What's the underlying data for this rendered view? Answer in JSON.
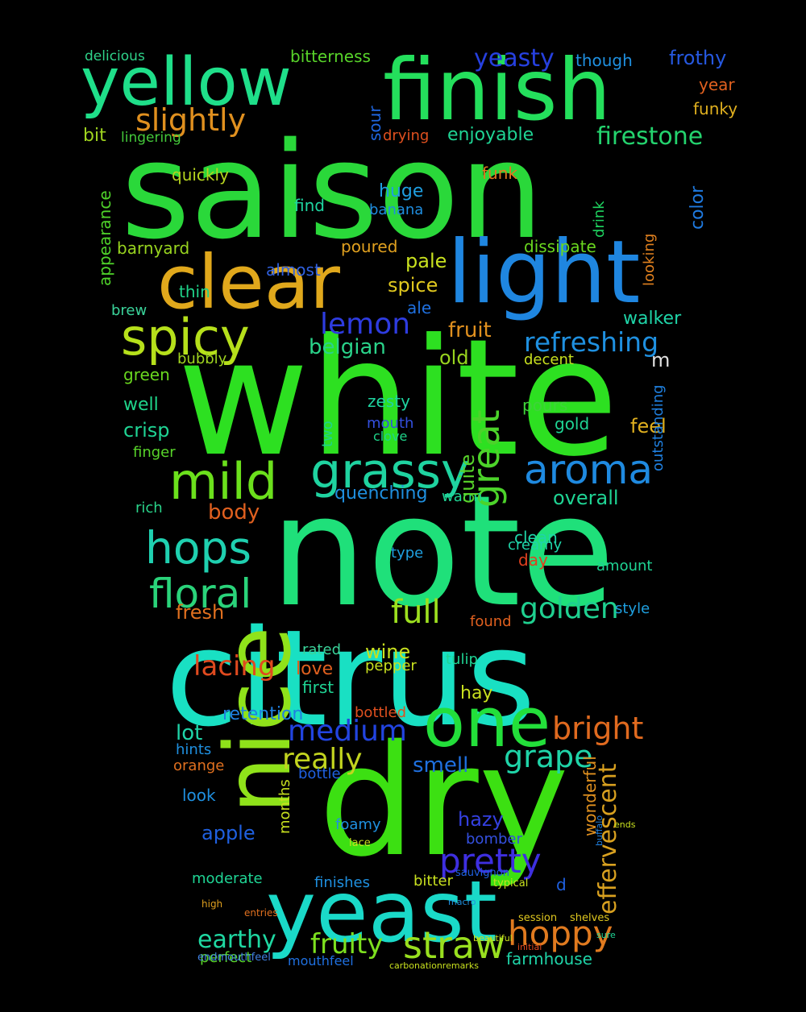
{
  "background": "#000000",
  "words": [
    {
      "text": "white",
      "color": "#2de021"
    },
    {
      "text": "note",
      "color": "#1fe07a"
    },
    {
      "text": "saison",
      "color": "#2ad83a"
    },
    {
      "text": "citrus",
      "color": "#19e0c3"
    },
    {
      "text": "dry",
      "color": "#3ce012"
    },
    {
      "text": "nice",
      "color": "#8fe21a"
    },
    {
      "text": "finish",
      "color": "#24df5c"
    },
    {
      "text": "yellow",
      "color": "#1fdf8a"
    },
    {
      "text": "light",
      "color": "#1f86e0"
    },
    {
      "text": "clear",
      "color": "#e0a81c"
    },
    {
      "text": "yeast",
      "color": "#1ad9c8"
    },
    {
      "text": "one",
      "color": "#23df3a"
    },
    {
      "text": "spicy",
      "color": "#b6e01b"
    },
    {
      "text": "mild",
      "color": "#6be01c"
    },
    {
      "text": "grassy",
      "color": "#1fd3a0"
    },
    {
      "text": "aroma",
      "color": "#1f8ae0"
    },
    {
      "text": "hops",
      "color": "#1fd0b0"
    },
    {
      "text": "floral",
      "color": "#2ad37a"
    },
    {
      "text": "straw",
      "color": "#98df1f"
    },
    {
      "text": "hoppy",
      "color": "#e07a1f"
    },
    {
      "text": "medium",
      "color": "#2244e0"
    },
    {
      "text": "slightly",
      "color": "#e0901f"
    },
    {
      "text": "refreshing",
      "color": "#1f90e0"
    },
    {
      "text": "lemon",
      "color": "#2e3ce0"
    },
    {
      "text": "great",
      "color": "#4cd32a"
    },
    {
      "text": "pretty",
      "color": "#3e2fe0"
    },
    {
      "text": "firestone",
      "color": "#24d36e"
    },
    {
      "text": "grape",
      "color": "#1fd4a8"
    },
    {
      "text": "golden",
      "color": "#1fd090"
    },
    {
      "text": "lacing",
      "color": "#e04a1f"
    },
    {
      "text": "full",
      "color": "#9de01f"
    },
    {
      "text": "fruity",
      "color": "#7de01f"
    },
    {
      "text": "bright",
      "color": "#e06a1f"
    },
    {
      "text": "really",
      "color": "#c2d41f"
    },
    {
      "text": "earthy",
      "color": "#1fd8a2"
    },
    {
      "text": "effervescent",
      "color": "#d8a01f"
    },
    {
      "text": "yeasty",
      "color": "#2640e0"
    },
    {
      "text": "frothy",
      "color": "#2658e0"
    },
    {
      "text": "bitterness",
      "color": "#58d42a"
    },
    {
      "text": "delicious",
      "color": "#2fd38a"
    },
    {
      "text": "though",
      "color": "#1f90e0"
    },
    {
      "text": "year",
      "color": "#e0601f"
    },
    {
      "text": "funky",
      "color": "#e0b01f"
    },
    {
      "text": "bit",
      "color": "#9fd41f"
    },
    {
      "text": "lingering",
      "color": "#44c93a"
    },
    {
      "text": "enjoyable",
      "color": "#1fd494"
    },
    {
      "text": "drying",
      "color": "#e0501f"
    },
    {
      "text": "sour",
      "color": "#1f66e0"
    },
    {
      "text": "quickly",
      "color": "#b6d41f"
    },
    {
      "text": "appearance",
      "color": "#4fd32a"
    },
    {
      "text": "color",
      "color": "#1f7ae0"
    },
    {
      "text": "huge",
      "color": "#1f9ee0"
    },
    {
      "text": "find",
      "color": "#1fd4a0"
    },
    {
      "text": "banana",
      "color": "#1f8ee0"
    },
    {
      "text": "funk",
      "color": "#e0781f"
    },
    {
      "text": "drink",
      "color": "#1fd460"
    },
    {
      "text": "looking",
      "color": "#e0801f"
    },
    {
      "text": "barnyard",
      "color": "#98d41f"
    },
    {
      "text": "almost",
      "color": "#2f60e0"
    },
    {
      "text": "poured",
      "color": "#e0a01f"
    },
    {
      "text": "dissipate",
      "color": "#6ad81f"
    },
    {
      "text": "pale",
      "color": "#c8e01f"
    },
    {
      "text": "spice",
      "color": "#e0c81f"
    },
    {
      "text": "thin",
      "color": "#1fd48a"
    },
    {
      "text": "ale",
      "color": "#1f70e0"
    },
    {
      "text": "walker",
      "color": "#1fd4a8"
    },
    {
      "text": "fruit",
      "color": "#e0901f"
    },
    {
      "text": "belgian",
      "color": "#2ad38a"
    },
    {
      "text": "brew",
      "color": "#3ad39a"
    },
    {
      "text": "old",
      "color": "#98d41f"
    },
    {
      "text": "decent",
      "color": "#c8e01f"
    },
    {
      "text": "m",
      "color": "#e0e0e0"
    },
    {
      "text": "bubbly",
      "color": "#9fd41f"
    },
    {
      "text": "green",
      "color": "#6ad81f"
    },
    {
      "text": "well",
      "color": "#1fd48a"
    },
    {
      "text": "crisp",
      "color": "#1fd494"
    },
    {
      "text": "zesty",
      "color": "#1fd4a0"
    },
    {
      "text": "pours",
      "color": "#3fd33a"
    },
    {
      "text": "gold",
      "color": "#1fd494"
    },
    {
      "text": "feel",
      "color": "#e0b01f"
    },
    {
      "text": "mouth",
      "color": "#3450e0"
    },
    {
      "text": "clove",
      "color": "#1fd48a"
    },
    {
      "text": "finger",
      "color": "#58d42a"
    },
    {
      "text": "two",
      "color": "#1fd48a"
    },
    {
      "text": "quenching",
      "color": "#1f90e0"
    },
    {
      "text": "warm",
      "color": "#1fd494"
    },
    {
      "text": "overall",
      "color": "#1fd494"
    },
    {
      "text": "rich",
      "color": "#2ad38a"
    },
    {
      "text": "body",
      "color": "#e0601f"
    },
    {
      "text": "clean",
      "color": "#1fd4a8"
    },
    {
      "text": "creamy",
      "color": "#1fd4a8"
    },
    {
      "text": "day",
      "color": "#e0401f"
    },
    {
      "text": "type",
      "color": "#1fa0e0"
    },
    {
      "text": "quite",
      "color": "#58d42a"
    },
    {
      "text": "amount",
      "color": "#1fd494"
    },
    {
      "text": "outstanding",
      "color": "#1f80e0"
    },
    {
      "text": "fresh",
      "color": "#e0701f"
    },
    {
      "text": "style",
      "color": "#1fa0e0"
    },
    {
      "text": "found",
      "color": "#e0601f"
    },
    {
      "text": "wine",
      "color": "#c8e01f"
    },
    {
      "text": "pepper",
      "color": "#c8e01f"
    },
    {
      "text": "love",
      "color": "#e0601f"
    },
    {
      "text": "rated",
      "color": "#3ad39a"
    },
    {
      "text": "tulip",
      "color": "#1fd494"
    },
    {
      "text": "first",
      "color": "#1fd494"
    },
    {
      "text": "hay",
      "color": "#c8e01f"
    },
    {
      "text": "retention",
      "color": "#1f80e0"
    },
    {
      "text": "bottled",
      "color": "#e0501f"
    },
    {
      "text": "lot",
      "color": "#1fd4a8"
    },
    {
      "text": "hints",
      "color": "#1f90e0"
    },
    {
      "text": "orange",
      "color": "#e0701f"
    },
    {
      "text": "smell",
      "color": "#1f70e0"
    },
    {
      "text": "bottle",
      "color": "#1f60e0"
    },
    {
      "text": "look",
      "color": "#1f90e0"
    },
    {
      "text": "apple",
      "color": "#1f60e0"
    },
    {
      "text": "hazy",
      "color": "#3440e0"
    },
    {
      "text": "bomber",
      "color": "#3450e0"
    },
    {
      "text": "foamy",
      "color": "#1f90e0"
    },
    {
      "text": "months",
      "color": "#c8e01f"
    },
    {
      "text": "moderate",
      "color": "#1fd494"
    },
    {
      "text": "finishes",
      "color": "#1f90e0"
    },
    {
      "text": "bitter",
      "color": "#c8e01f"
    },
    {
      "text": "wonderful",
      "color": "#e0901f"
    },
    {
      "text": "d",
      "color": "#1f60e0"
    },
    {
      "text": "perfect",
      "color": "#58d42a"
    },
    {
      "text": "mouthfeel",
      "color": "#1f70e0"
    },
    {
      "text": "farmhouse",
      "color": "#1fd4a8"
    },
    {
      "text": "lace",
      "color": "#c8e01f"
    },
    {
      "text": "session",
      "color": "#e0c81f"
    },
    {
      "text": "shelves",
      "color": "#e0c81f"
    },
    {
      "text": "typical",
      "color": "#c8e01f"
    },
    {
      "text": "sauvignon",
      "color": "#1f60e0"
    },
    {
      "text": "endmouthfeel",
      "color": "#4080e0"
    },
    {
      "text": "carbonationremarks",
      "color": "#c8e01f"
    },
    {
      "text": "beautiful",
      "color": "#c8e01f"
    },
    {
      "text": "macro",
      "color": "#1f90e0"
    },
    {
      "text": "entries",
      "color": "#e0701f"
    },
    {
      "text": "high",
      "color": "#e0a01f"
    },
    {
      "text": "sure",
      "color": "#1fd494"
    },
    {
      "text": "initial",
      "color": "#e04a1f"
    },
    {
      "text": "buffalo",
      "color": "#1f80e0"
    },
    {
      "text": "ends",
      "color": "#c8e01f"
    }
  ]
}
